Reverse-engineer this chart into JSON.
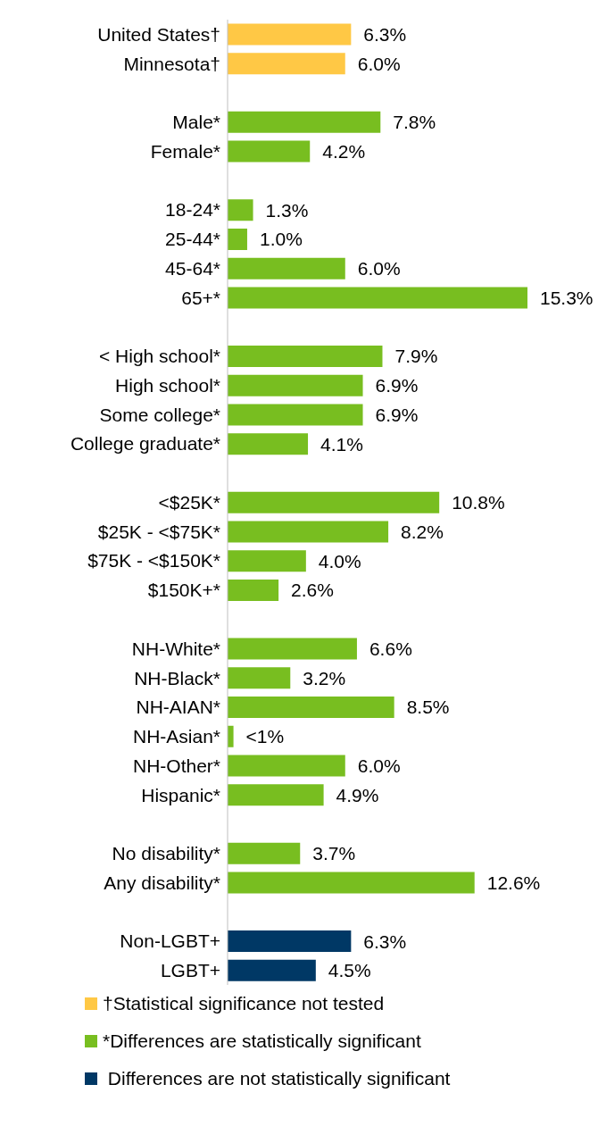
{
  "chart_data": {
    "type": "bar",
    "orientation": "horizontal",
    "stacked": true,
    "categories": [
      "United States†",
      "Minnesota†",
      null,
      "Male*",
      "Female*",
      null,
      "18-24*",
      "25-44*",
      "45-64*",
      "65+*",
      null,
      "< High school*",
      "High school*",
      "Some college*",
      "College graduate*",
      null,
      "<$25K*",
      "$25K - <$75K*",
      "$75K - <$150K*",
      "$150K+*",
      null,
      "NH-White*",
      "NH-Black*",
      "NH-AIAN*",
      "NH-Asian*",
      "NH-Other*",
      "Hispanic*",
      null,
      "No disability*",
      "Any disability*",
      null,
      "Non-LGBT+",
      "LGBT+"
    ],
    "series": [
      {
        "name": "†Statistical significance not tested",
        "color": "#ffc845",
        "values": [
          6.3,
          6.0,
          null,
          null,
          null,
          null,
          null,
          null,
          null,
          null,
          null,
          null,
          null,
          null,
          null,
          null,
          null,
          null,
          null,
          null,
          null,
          null,
          null,
          null,
          null,
          null,
          null,
          null,
          null,
          null,
          null,
          null,
          null
        ],
        "value_labels": [
          "6.3%",
          "6.0%",
          null,
          null,
          null,
          null,
          null,
          null,
          null,
          null,
          null,
          null,
          null,
          null,
          null,
          null,
          null,
          null,
          null,
          null,
          null,
          null,
          null,
          null,
          null,
          null,
          null,
          null,
          null,
          null,
          null,
          null,
          null
        ]
      },
      {
        "name": "*Differences are statistically significant",
        "color": "#78be20",
        "values": [
          null,
          null,
          null,
          7.8,
          4.2,
          null,
          1.3,
          1.0,
          6.0,
          15.3,
          null,
          7.9,
          6.9,
          6.9,
          4.1,
          null,
          10.8,
          8.2,
          4.0,
          2.6,
          null,
          6.6,
          3.2,
          8.5,
          0.3,
          6.0,
          4.9,
          null,
          3.7,
          12.6,
          null,
          null,
          null
        ],
        "value_labels": [
          null,
          null,
          null,
          "7.8%",
          "4.2%",
          null,
          "1.3%",
          "1.0%",
          "6.0%",
          "15.3%",
          null,
          "7.9%",
          "6.9%",
          "6.9%",
          "4.1%",
          null,
          "10.8%",
          "8.2%",
          "4.0%",
          "2.6%",
          null,
          "6.6%",
          "3.2%",
          "8.5%",
          "<1%",
          "6.0%",
          "4.9%",
          null,
          "3.7%",
          "12.6%",
          null,
          null,
          null
        ]
      },
      {
        "name": " Differences are not statistically significant",
        "color": "#003865",
        "values": [
          null,
          null,
          null,
          null,
          null,
          null,
          null,
          null,
          null,
          null,
          null,
          null,
          null,
          null,
          null,
          null,
          null,
          null,
          null,
          null,
          null,
          null,
          null,
          null,
          null,
          null,
          null,
          null,
          null,
          null,
          null,
          6.3,
          4.5
        ],
        "value_labels": [
          null,
          null,
          null,
          null,
          null,
          null,
          null,
          null,
          null,
          null,
          null,
          null,
          null,
          null,
          null,
          null,
          null,
          null,
          null,
          null,
          null,
          null,
          null,
          null,
          null,
          null,
          null,
          null,
          null,
          null,
          null,
          "6.3%",
          "4.5%"
        ]
      }
    ],
    "legend": "bottom"
  }
}
